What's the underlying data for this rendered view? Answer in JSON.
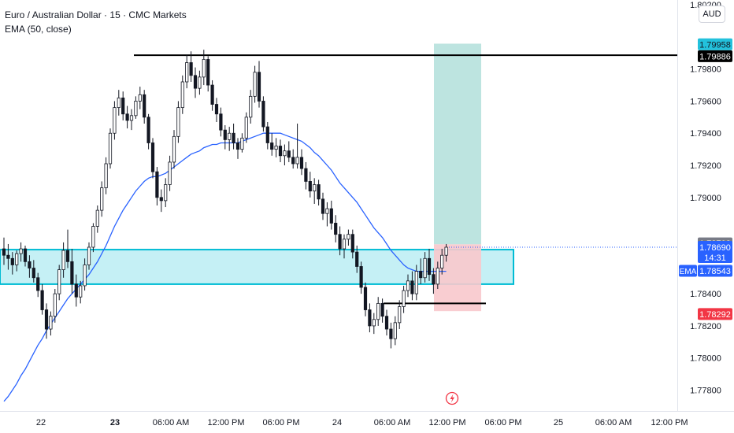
{
  "legend": {
    "title": "Euro / Australian Dollar · 15 · CMC Markets",
    "indicator": "EMA (50, close)"
  },
  "currency_button": "AUD",
  "colors": {
    "up": "#089981",
    "candle": "#131722",
    "ema": "#2962ff",
    "zone_fill": "#b2ebf2",
    "zone_border": "#00bcd4",
    "target_fill": "#b2dfdb",
    "stop_fill": "#f8c8cc",
    "level_line": "#000000",
    "price_tag": "#2962ff",
    "target_tag": "#22c1dc",
    "stop_tag": "#f23645",
    "high_tag": "#787b86"
  },
  "chart_data": {
    "type": "candlestick",
    "title": "Euro / Australian Dollar · 15 · CMC Markets",
    "ylim": [
      1.7767,
      1.8023
    ],
    "y_ticks": [
      "1.80200",
      "1.79800",
      "1.79600",
      "1.79400",
      "1.79200",
      "1.79000",
      "1.78400",
      "1.78200",
      "1.78000",
      "1.77800"
    ],
    "x_ticks": [
      "22",
      "23",
      "06:00 AM",
      "12:00 PM",
      "06:00 PM",
      "24",
      "06:00 AM",
      "12:00 PM",
      "06:00 PM",
      "25",
      "06:00 AM",
      "12:00 PM"
    ],
    "price_labels": {
      "target": "1.79958",
      "resistance": "1.79886",
      "high": "1.78708",
      "last": "1.78690",
      "countdown": "14:31",
      "ema_tag": "EMA",
      "ema": "1.78543",
      "stop": "1.78292"
    },
    "levels": {
      "resistance": 1.79886,
      "support": 1.7834,
      "zone_top": 1.78675,
      "zone_bottom": 1.7846,
      "last": 1.7869,
      "position_target": 1.79958,
      "position_entry": 1.78708,
      "position_stop": 1.78292
    },
    "ohlc": [
      [
        1.7868,
        1.7875,
        1.7858,
        1.7864
      ],
      [
        1.7864,
        1.7871,
        1.7855,
        1.7862
      ],
      [
        1.7862,
        1.7866,
        1.7852,
        1.7858
      ],
      [
        1.7858,
        1.7867,
        1.7854,
        1.7865
      ],
      [
        1.7865,
        1.7872,
        1.786,
        1.7868
      ],
      [
        1.7868,
        1.787,
        1.7857,
        1.786
      ],
      [
        1.786,
        1.7864,
        1.785,
        1.7856
      ],
      [
        1.7856,
        1.7861,
        1.7847,
        1.785
      ],
      [
        1.785,
        1.7853,
        1.7838,
        1.7842
      ],
      [
        1.7842,
        1.7846,
        1.7827,
        1.783
      ],
      [
        1.783,
        1.7834,
        1.7812,
        1.7818
      ],
      [
        1.7818,
        1.7829,
        1.7814,
        1.7826
      ],
      [
        1.7826,
        1.7843,
        1.7822,
        1.784
      ],
      [
        1.784,
        1.7858,
        1.7836,
        1.7855
      ],
      [
        1.7855,
        1.7872,
        1.785,
        1.7867
      ],
      [
        1.7867,
        1.788,
        1.7856,
        1.786
      ],
      [
        1.786,
        1.7868,
        1.784,
        1.7846
      ],
      [
        1.7846,
        1.7852,
        1.7832,
        1.7838
      ],
      [
        1.7838,
        1.7848,
        1.7834,
        1.7845
      ],
      [
        1.7845,
        1.7862,
        1.7842,
        1.7858
      ],
      [
        1.7858,
        1.7872,
        1.7855,
        1.7869
      ],
      [
        1.7869,
        1.7884,
        1.7866,
        1.7882
      ],
      [
        1.7882,
        1.7895,
        1.7878,
        1.7892
      ],
      [
        1.7892,
        1.791,
        1.7888,
        1.7906
      ],
      [
        1.7906,
        1.7925,
        1.7902,
        1.7921
      ],
      [
        1.7921,
        1.7943,
        1.7918,
        1.794
      ],
      [
        1.794,
        1.796,
        1.7936,
        1.7956
      ],
      [
        1.7956,
        1.7967,
        1.7951,
        1.7962
      ],
      [
        1.7962,
        1.7966,
        1.7948,
        1.7952
      ],
      [
        1.7952,
        1.7957,
        1.7943,
        1.7948
      ],
      [
        1.7948,
        1.7955,
        1.7942,
        1.7951
      ],
      [
        1.7951,
        1.7963,
        1.7949,
        1.796
      ],
      [
        1.796,
        1.7969,
        1.7955,
        1.7964
      ],
      [
        1.7964,
        1.7967,
        1.7946,
        1.795
      ],
      [
        1.795,
        1.7952,
        1.793,
        1.7934
      ],
      [
        1.7934,
        1.7937,
        1.7912,
        1.7916
      ],
      [
        1.7916,
        1.7919,
        1.7895,
        1.79
      ],
      [
        1.79,
        1.7905,
        1.7891,
        1.7898
      ],
      [
        1.7898,
        1.7912,
        1.7894,
        1.7908
      ],
      [
        1.7908,
        1.7926,
        1.7904,
        1.7922
      ],
      [
        1.7922,
        1.7942,
        1.7918,
        1.7938
      ],
      [
        1.7938,
        1.796,
        1.7934,
        1.7956
      ],
      [
        1.7956,
        1.7976,
        1.7952,
        1.7972
      ],
      [
        1.7972,
        1.7989,
        1.7968,
        1.7984
      ],
      [
        1.7984,
        1.7991,
        1.7972,
        1.7976
      ],
      [
        1.7976,
        1.7981,
        1.7962,
        1.7968
      ],
      [
        1.7968,
        1.7979,
        1.7964,
        1.7975
      ],
      [
        1.7975,
        1.7992,
        1.797,
        1.7986
      ],
      [
        1.7986,
        1.7988,
        1.7966,
        1.797
      ],
      [
        1.797,
        1.7973,
        1.7954,
        1.7958
      ],
      [
        1.7958,
        1.7962,
        1.7947,
        1.7952
      ],
      [
        1.7952,
        1.7956,
        1.7938,
        1.7942
      ],
      [
        1.7942,
        1.7945,
        1.793,
        1.7936
      ],
      [
        1.7936,
        1.7944,
        1.7929,
        1.794
      ],
      [
        1.794,
        1.7946,
        1.793,
        1.7934
      ],
      [
        1.7934,
        1.7937,
        1.7924,
        1.793
      ],
      [
        1.793,
        1.794,
        1.7928,
        1.7937
      ],
      [
        1.7937,
        1.7953,
        1.7934,
        1.795
      ],
      [
        1.795,
        1.7967,
        1.7946,
        1.7963
      ],
      [
        1.7963,
        1.7982,
        1.7959,
        1.7978
      ],
      [
        1.7978,
        1.7985,
        1.7956,
        1.796
      ],
      [
        1.796,
        1.7963,
        1.7941,
        1.7944
      ],
      [
        1.7944,
        1.7947,
        1.793,
        1.7934
      ],
      [
        1.7934,
        1.794,
        1.7926,
        1.793
      ],
      [
        1.793,
        1.7937,
        1.7925,
        1.7932
      ],
      [
        1.7932,
        1.7936,
        1.7922,
        1.7926
      ],
      [
        1.7926,
        1.7933,
        1.792,
        1.7929
      ],
      [
        1.7929,
        1.7935,
        1.7922,
        1.7925
      ],
      [
        1.7925,
        1.793,
        1.7918,
        1.7921
      ],
      [
        1.7921,
        1.7946,
        1.7918,
        1.7925
      ],
      [
        1.7925,
        1.793,
        1.7914,
        1.7918
      ],
      [
        1.7918,
        1.7922,
        1.7905,
        1.791
      ],
      [
        1.791,
        1.7916,
        1.79,
        1.7904
      ],
      [
        1.7904,
        1.7912,
        1.7896,
        1.7908
      ],
      [
        1.7908,
        1.7911,
        1.7895,
        1.7899
      ],
      [
        1.7899,
        1.7903,
        1.7886,
        1.789
      ],
      [
        1.789,
        1.7897,
        1.7882,
        1.7893
      ],
      [
        1.7893,
        1.7898,
        1.788,
        1.7884
      ],
      [
        1.7884,
        1.7889,
        1.7872,
        1.7877
      ],
      [
        1.7877,
        1.7882,
        1.7864,
        1.7868
      ],
      [
        1.7868,
        1.7877,
        1.7862,
        1.7874
      ],
      [
        1.7874,
        1.788,
        1.787,
        1.7877
      ],
      [
        1.7877,
        1.788,
        1.7862,
        1.7866
      ],
      [
        1.7866,
        1.787,
        1.7853,
        1.7857
      ],
      [
        1.7857,
        1.786,
        1.784,
        1.7844
      ],
      [
        1.7844,
        1.7847,
        1.7826,
        1.783
      ],
      [
        1.783,
        1.7834,
        1.7816,
        1.782
      ],
      [
        1.782,
        1.7828,
        1.7815,
        1.7824
      ],
      [
        1.7824,
        1.7838,
        1.782,
        1.7834
      ],
      [
        1.7834,
        1.7837,
        1.7822,
        1.7826
      ],
      [
        1.7826,
        1.783,
        1.7814,
        1.7818
      ],
      [
        1.7818,
        1.7822,
        1.7806,
        1.7812
      ],
      [
        1.7812,
        1.7826,
        1.7808,
        1.7822
      ],
      [
        1.7822,
        1.7836,
        1.7818,
        1.7832
      ],
      [
        1.7832,
        1.7845,
        1.7828,
        1.7842
      ],
      [
        1.7842,
        1.7852,
        1.7838,
        1.7848
      ],
      [
        1.7848,
        1.7854,
        1.7836,
        1.784
      ],
      [
        1.784,
        1.7858,
        1.7836,
        1.7854
      ],
      [
        1.7854,
        1.7862,
        1.7846,
        1.785
      ],
      [
        1.785,
        1.7866,
        1.7847,
        1.7862
      ],
      [
        1.7862,
        1.7868,
        1.7848,
        1.7852
      ],
      [
        1.7852,
        1.7856,
        1.784,
        1.7846
      ],
      [
        1.7846,
        1.786,
        1.7843,
        1.7856
      ],
      [
        1.7856,
        1.7868,
        1.7852,
        1.7864
      ],
      [
        1.7864,
        1.7871,
        1.786,
        1.7869
      ]
    ],
    "ema": [
      1.7773,
      1.7776,
      1.778,
      1.7784,
      1.7789,
      1.7793,
      1.7798,
      1.7803,
      1.7808,
      1.7812,
      1.7817,
      1.7821,
      1.7825,
      1.7829,
      1.7833,
      1.7837,
      1.784,
      1.7843,
      1.7846,
      1.7849,
      1.7852,
      1.7856,
      1.786,
      1.7865,
      1.787,
      1.7876,
      1.7882,
      1.7887,
      1.7892,
      1.7896,
      1.79,
      1.7904,
      1.7907,
      1.791,
      1.7912,
      1.7913,
      1.7913,
      1.7914,
      1.7915,
      1.7917,
      1.7919,
      1.7921,
      1.7923,
      1.7925,
      1.7927,
      1.7928,
      1.7929,
      1.7931,
      1.7932,
      1.7933,
      1.7933,
      1.7934,
      1.7934,
      1.7934,
      1.7934,
      1.7934,
      1.7935,
      1.7936,
      1.7937,
      1.7938,
      1.7939,
      1.794,
      1.794,
      1.794,
      1.794,
      1.794,
      1.7939,
      1.7938,
      1.7937,
      1.7936,
      1.7935,
      1.7933,
      1.7931,
      1.7928,
      1.7926,
      1.7923,
      1.792,
      1.7917,
      1.7913,
      1.7909,
      1.7906,
      1.7903,
      1.79,
      1.7897,
      1.7893,
      1.7889,
      1.7885,
      1.7881,
      1.7878,
      1.7875,
      1.7871,
      1.7867,
      1.7864,
      1.7861,
      1.7858,
      1.7856,
      1.7855,
      1.7854,
      1.7854,
      1.7854,
      1.7854,
      1.7854,
      1.7854,
      1.7854,
      1.7854
    ]
  }
}
